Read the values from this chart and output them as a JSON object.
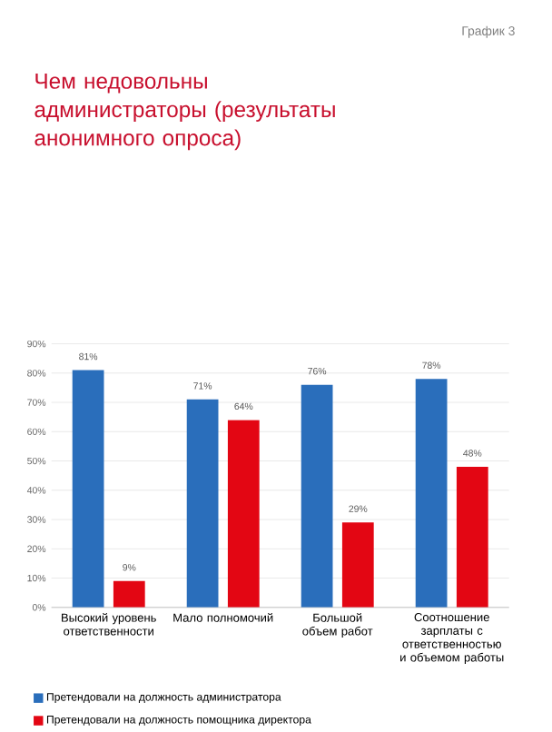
{
  "chart_data": {
    "type": "bar",
    "title": "Чем недовольны администраторы (результаты анонимного опроса)",
    "annotations": [
      "График 3"
    ],
    "categories": [
      "Высокий уровень ответственности",
      "Мало полномочий",
      "Большой объем работ",
      "Соотношение зарплаты с ответственностью и объемом работы"
    ],
    "series": [
      {
        "name": "Претендовали на должность администратора",
        "color": "#2a6ebb",
        "values": [
          81,
          71,
          76,
          78
        ],
        "value_labels": [
          "81%",
          "71%",
          "76%",
          "78%"
        ]
      },
      {
        "name": "Претендовали на должность помощника директора",
        "color": "#e30613",
        "values": [
          9,
          64,
          29,
          48
        ],
        "value_labels": [
          "9%",
          "64%",
          "29%",
          "48%"
        ]
      }
    ],
    "ylim": [
      0,
      90
    ],
    "yticks": [
      {
        "value": 0,
        "label": "0%"
      },
      {
        "value": 10,
        "label": "10%"
      },
      {
        "value": 20,
        "label": "20%"
      },
      {
        "value": 30,
        "label": "30%"
      },
      {
        "value": 40,
        "label": "40%"
      },
      {
        "value": 50,
        "label": "50%"
      },
      {
        "value": 60,
        "label": "60%"
      },
      {
        "value": 70,
        "label": "70%"
      },
      {
        "value": 80,
        "label": "80%"
      },
      {
        "value": 90,
        "label": "90%"
      }
    ],
    "grid": "y",
    "legend": "bottom"
  }
}
